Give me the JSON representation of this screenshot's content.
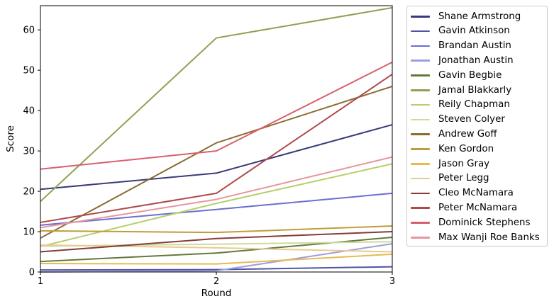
{
  "chart_data": {
    "type": "line",
    "title": "",
    "xlabel": "Round",
    "ylabel": "Score",
    "x": [
      1,
      2,
      3
    ],
    "xticks": [
      "1",
      "2",
      "3"
    ],
    "yticks": [
      "0",
      "10",
      "20",
      "30",
      "40",
      "50",
      "60"
    ],
    "ytick_values": [
      0,
      10,
      20,
      30,
      40,
      50,
      60
    ],
    "xlim": [
      1,
      3
    ],
    "ylim": [
      0,
      66
    ],
    "grid": false,
    "legend_position": "outside-right-top",
    "series": [
      {
        "name": "Shane Armstrong",
        "color": "#393b79",
        "values": [
          20.5,
          24.5,
          36.5
        ]
      },
      {
        "name": "Gavin Atkinson",
        "color": "#5254a3",
        "values": [
          0.5,
          0.6,
          1.3
        ]
      },
      {
        "name": "Brandan Austin",
        "color": "#6b6ecf",
        "values": [
          11.6,
          15.5,
          19.5
        ]
      },
      {
        "name": "Jonathan Austin",
        "color": "#9c9ede",
        "values": [
          0.0,
          0.3,
          7.0
        ]
      },
      {
        "name": "Gavin Begbie",
        "color": "#637939",
        "values": [
          2.6,
          4.7,
          8.6
        ]
      },
      {
        "name": "Jamal Blakkarly",
        "color": "#8ca252",
        "values": [
          17.5,
          58.0,
          65.5
        ]
      },
      {
        "name": "Reily Chapman",
        "color": "#b5cf6b",
        "values": [
          6.3,
          17.0,
          26.8
        ]
      },
      {
        "name": "Steven Colyer",
        "color": "#cedb9c",
        "values": [
          6.4,
          6.9,
          7.5
        ]
      },
      {
        "name": "Andrew Goff",
        "color": "#8c6d31",
        "values": [
          8.4,
          32.0,
          46.0
        ]
      },
      {
        "name": "Ken Gordon",
        "color": "#bd9e39",
        "values": [
          10.2,
          9.8,
          11.4
        ]
      },
      {
        "name": "Jason Gray",
        "color": "#e7ba52",
        "values": [
          2.1,
          2.0,
          4.4
        ]
      },
      {
        "name": "Peter Legg",
        "color": "#e7cb94",
        "values": [
          6.7,
          6.0,
          5.0
        ]
      },
      {
        "name": "Cleo McNamara",
        "color": "#843c39",
        "values": [
          5.0,
          8.3,
          10.0
        ]
      },
      {
        "name": "Peter McNamara",
        "color": "#ad494a",
        "values": [
          12.3,
          19.5,
          49.0
        ]
      },
      {
        "name": "Dominick Stephens",
        "color": "#d6616b",
        "values": [
          25.5,
          30.0,
          52.0
        ]
      },
      {
        "name": "Max Wanji Roe Banks",
        "color": "#e7969c",
        "values": [
          11.0,
          18.0,
          28.5
        ]
      }
    ],
    "axis_color": "#000000",
    "background_color": "#ffffff",
    "legend_border_color": "#c9c9c9"
  }
}
